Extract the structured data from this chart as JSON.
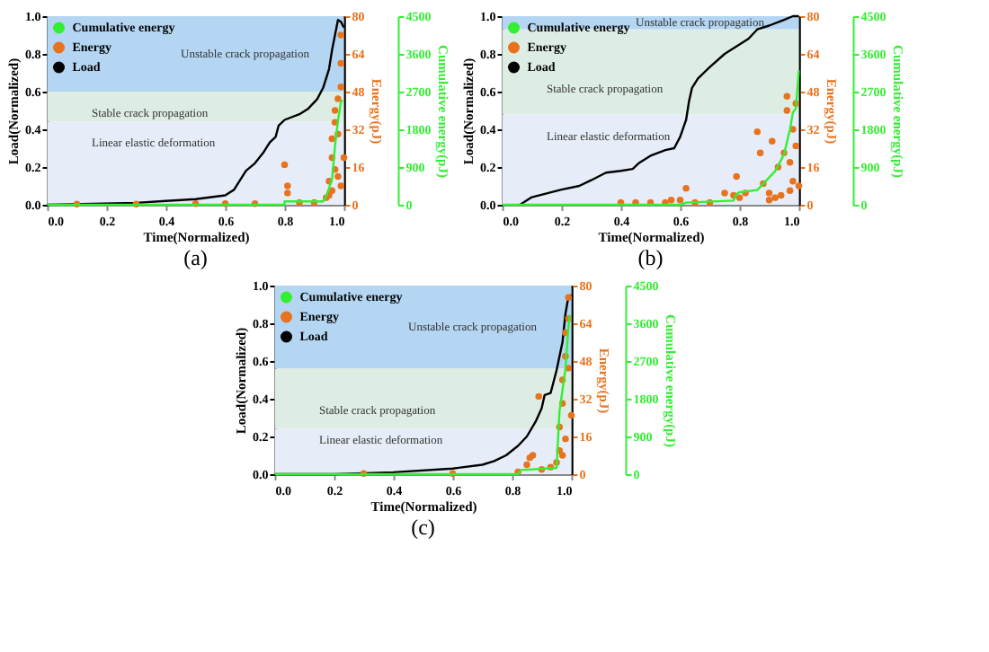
{
  "chart_data": [
    {
      "type": "line",
      "title": "(a)",
      "xlabel": "Time(Normalized)",
      "ylabel": "Load(Normalized)",
      "y2label": "Energy(pJ)",
      "y3label": "Cumulative energy(pJ)",
      "xlim": [
        0,
        1
      ],
      "xticks": [
        {
          "value": 0,
          "label": "0.0"
        },
        {
          "value": 0.2,
          "label": "0.2"
        },
        {
          "value": 0.4,
          "label": "0.4"
        },
        {
          "value": 0.6,
          "label": "0.6"
        },
        {
          "value": 0.8,
          "label": "0.8"
        },
        {
          "value": 1,
          "label": "1.0"
        }
      ],
      "ylim": [
        0,
        1
      ],
      "yticks": [
        {
          "value": 0,
          "label": "0.0"
        },
        {
          "value": 0.2,
          "label": "0.2"
        },
        {
          "value": 0.4,
          "label": "0.4"
        },
        {
          "value": 0.6,
          "label": "0.6"
        },
        {
          "value": 0.8,
          "label": "0.8"
        },
        {
          "value": 1,
          "label": "1.0"
        }
      ],
      "y2lim": [
        0,
        80
      ],
      "y2ticks": [
        0,
        16,
        32,
        48,
        64,
        80
      ],
      "y3lim": [
        0,
        4500
      ],
      "y3ticks": [
        0,
        900,
        1800,
        2700,
        3600,
        4500
      ],
      "legend": "top left",
      "grid": false,
      "bands": [
        {
          "axis": "y",
          "from": 0.6,
          "to": 1,
          "label": "Unstable crack propagation",
          "color": "#b4d6f2"
        },
        {
          "axis": "y",
          "from": 0.44,
          "to": 0.6,
          "label": "Stable crack propagation",
          "color": "#deede4"
        },
        {
          "axis": "y",
          "from": 0,
          "to": 0.44,
          "label": "Linear elastic deformation",
          "color": "#e6ecf8"
        }
      ],
      "series": [
        {
          "name": "Cumulative energy",
          "type": "line",
          "axis": "y3",
          "color": "#33ee33",
          "marker": "none",
          "x": [
            0,
            0.8,
            0.8,
            0.93,
            0.94,
            0.96,
            0.97,
            0.98,
            0.99,
            0.995
          ],
          "values": [
            0,
            0,
            80,
            80,
            200,
            600,
            1400,
            2000,
            2450,
            2500
          ]
        },
        {
          "name": "Energy",
          "type": "scatter",
          "axis": "y2",
          "color": "#e8731e",
          "marker": "circle",
          "x": [
            0.1,
            0.3,
            0.5,
            0.6,
            0.7,
            0.8,
            0.81,
            0.81,
            0.85,
            0.9,
            0.94,
            0.95,
            0.95,
            0.96,
            0.96,
            0.96,
            0.97,
            0.97,
            0.97,
            0.98,
            0.98,
            0.98,
            0.99,
            0.99,
            0.99,
            0.99,
            1.0
          ],
          "values": [
            0.3,
            0.3,
            0.5,
            0.5,
            0.5,
            17,
            8,
            5,
            1,
            1,
            3,
            10,
            4,
            20,
            28,
            6,
            35,
            40,
            15,
            45,
            30,
            12,
            72,
            60,
            50,
            8,
            20
          ]
        },
        {
          "name": "Load",
          "type": "line",
          "axis": "y",
          "color": "#000000",
          "marker": "none",
          "x": [
            0,
            0.3,
            0.4,
            0.5,
            0.6,
            0.63,
            0.65,
            0.67,
            0.7,
            0.73,
            0.75,
            0.77,
            0.78,
            0.8,
            0.85,
            0.88,
            0.91,
            0.93,
            0.95,
            0.96,
            0.97,
            0.98,
            0.99,
            1.0
          ],
          "values": [
            0,
            0.01,
            0.02,
            0.03,
            0.05,
            0.08,
            0.13,
            0.18,
            0.22,
            0.28,
            0.33,
            0.36,
            0.42,
            0.45,
            0.48,
            0.51,
            0.56,
            0.62,
            0.72,
            0.82,
            0.9,
            0.98,
            0.97,
            0.94
          ]
        }
      ]
    },
    {
      "type": "line",
      "title": "(b)",
      "xlabel": "Time(Normalized)",
      "ylabel": "Load(Normalized)",
      "y2label": "Energy(pJ)",
      "y3label": "Cumulative energy(pJ)",
      "xlim": [
        0,
        1
      ],
      "xticks": [
        {
          "value": 0,
          "label": "0.0"
        },
        {
          "value": 0.2,
          "label": "0.2"
        },
        {
          "value": 0.4,
          "label": "0.4"
        },
        {
          "value": 0.6,
          "label": "0.6"
        },
        {
          "value": 0.8,
          "label": "0.8"
        },
        {
          "value": 1,
          "label": "1.0"
        }
      ],
      "ylim": [
        0,
        1
      ],
      "yticks": [
        {
          "value": 0,
          "label": "0.0"
        },
        {
          "value": 0.2,
          "label": "0.2"
        },
        {
          "value": 0.4,
          "label": "0.4"
        },
        {
          "value": 0.6,
          "label": "0.6"
        },
        {
          "value": 0.8,
          "label": "0.8"
        },
        {
          "value": 1,
          "label": "1.0"
        }
      ],
      "y2lim": [
        0,
        80
      ],
      "y2ticks": [
        0,
        16,
        32,
        48,
        64,
        80
      ],
      "y3lim": [
        0,
        4500
      ],
      "y3ticks": [
        0,
        900,
        1800,
        2700,
        3600,
        4500
      ],
      "legend": "top left",
      "grid": false,
      "bands": [
        {
          "axis": "y",
          "from": 0.93,
          "to": 1,
          "label": "Unstable crack propagation",
          "color": "#b4d6f2"
        },
        {
          "axis": "y",
          "from": 0.48,
          "to": 0.93,
          "label": "Stable crack propagation",
          "color": "#deede4"
        },
        {
          "axis": "y",
          "from": 0,
          "to": 0.48,
          "label": "Linear elastic deformation",
          "color": "#e6ecf8"
        }
      ],
      "series": [
        {
          "name": "Cumulative energy",
          "type": "line",
          "axis": "y3",
          "color": "#33ee33",
          "marker": "none",
          "x": [
            0,
            0.6,
            0.62,
            0.78,
            0.79,
            0.8,
            0.86,
            0.88,
            0.92,
            0.95,
            0.97,
            0.98,
            0.99,
            1.0
          ],
          "values": [
            0,
            0,
            50,
            100,
            250,
            300,
            350,
            500,
            800,
            1200,
            1800,
            2200,
            2300,
            3200
          ]
        },
        {
          "name": "Energy",
          "type": "scatter",
          "axis": "y2",
          "color": "#e8731e",
          "marker": "circle",
          "x": [
            0.4,
            0.45,
            0.5,
            0.55,
            0.57,
            0.6,
            0.62,
            0.65,
            0.7,
            0.75,
            0.78,
            0.79,
            0.8,
            0.82,
            0.86,
            0.87,
            0.88,
            0.9,
            0.9,
            0.91,
            0.92,
            0.93,
            0.94,
            0.95,
            0.96,
            0.96,
            0.97,
            0.97,
            0.98,
            0.98,
            0.99,
            0.99,
            1.0
          ],
          "values": [
            1,
            1,
            1,
            1,
            2,
            2,
            7,
            1,
            1,
            5,
            4,
            12,
            3,
            5,
            31,
            22,
            9,
            5,
            2,
            27,
            3,
            16,
            4,
            22,
            46,
            40,
            18,
            6,
            32,
            10,
            43,
            25,
            8
          ]
        },
        {
          "name": "Load",
          "type": "line",
          "axis": "y",
          "color": "#000000",
          "marker": "none",
          "x": [
            0.06,
            0.08,
            0.1,
            0.15,
            0.2,
            0.26,
            0.3,
            0.35,
            0.4,
            0.44,
            0.46,
            0.5,
            0.55,
            0.58,
            0.6,
            0.62,
            0.63,
            0.64,
            0.66,
            0.7,
            0.75,
            0.8,
            0.83,
            0.86,
            0.9,
            0.95,
            0.98,
            1.0
          ],
          "values": [
            0,
            0.02,
            0.04,
            0.06,
            0.08,
            0.1,
            0.13,
            0.17,
            0.18,
            0.19,
            0.22,
            0.26,
            0.29,
            0.3,
            0.36,
            0.45,
            0.55,
            0.62,
            0.67,
            0.73,
            0.8,
            0.85,
            0.88,
            0.93,
            0.95,
            0.98,
            1.0,
            1.0
          ]
        }
      ]
    },
    {
      "type": "line",
      "title": "(c)",
      "xlabel": "Time(Normalized)",
      "ylabel": "Load(Normalized)",
      "y2label": "Energy(pJ)",
      "y3label": "Cumulative energy(pJ)",
      "xlim": [
        0,
        1
      ],
      "xticks": [
        {
          "value": 0,
          "label": "0.0"
        },
        {
          "value": 0.2,
          "label": "0.2"
        },
        {
          "value": 0.4,
          "label": "0.4"
        },
        {
          "value": 0.6,
          "label": "0.6"
        },
        {
          "value": 0.8,
          "label": "0.8"
        },
        {
          "value": 1,
          "label": "1.0"
        }
      ],
      "ylim": [
        0,
        1
      ],
      "yticks": [
        {
          "value": 0,
          "label": "0.0"
        },
        {
          "value": 0.2,
          "label": "0.2"
        },
        {
          "value": 0.4,
          "label": "0.4"
        },
        {
          "value": 0.6,
          "label": "0.6"
        },
        {
          "value": 0.8,
          "label": "0.8"
        },
        {
          "value": 1,
          "label": "1.0"
        }
      ],
      "y2lim": [
        0,
        80
      ],
      "y2ticks": [
        0,
        16,
        32,
        48,
        64,
        80
      ],
      "y3lim": [
        0,
        4500
      ],
      "y3ticks": [
        0,
        900,
        1800,
        2700,
        3600,
        4500
      ],
      "legend": "top left",
      "grid": false,
      "bands": [
        {
          "axis": "y",
          "from": 0.56,
          "to": 1,
          "label": "Unstable crack propagation",
          "color": "#b4d6f2"
        },
        {
          "axis": "y",
          "from": 0.24,
          "to": 0.56,
          "label": "Stable crack propagation",
          "color": "#deede4"
        },
        {
          "axis": "y",
          "from": 0,
          "to": 0.24,
          "label": "Linear elastic deformation",
          "color": "#e6ecf8"
        }
      ],
      "series": [
        {
          "name": "Cumulative energy",
          "type": "line",
          "axis": "y3",
          "color": "#33ee33",
          "marker": "none",
          "x": [
            0,
            0.82,
            0.83,
            0.95,
            0.96,
            0.97,
            0.98,
            0.99,
            0.995
          ],
          "values": [
            0,
            0,
            100,
            150,
            1500,
            2000,
            2500,
            3500,
            3800
          ]
        },
        {
          "name": "Energy",
          "type": "scatter",
          "axis": "y2",
          "color": "#e8731e",
          "marker": "circle",
          "x": [
            0.3,
            0.6,
            0.82,
            0.85,
            0.86,
            0.87,
            0.89,
            0.9,
            0.93,
            0.95,
            0.96,
            0.96,
            0.97,
            0.97,
            0.97,
            0.98,
            0.98,
            0.98,
            0.99,
            0.99,
            0.99,
            1.0
          ],
          "values": [
            0.3,
            0.3,
            1,
            4,
            7,
            8,
            33,
            2,
            3,
            5,
            10,
            20,
            30,
            40,
            8,
            50,
            60,
            15,
            66,
            75,
            45,
            25
          ]
        },
        {
          "name": "Load",
          "type": "line",
          "axis": "y",
          "color": "#000000",
          "marker": "none",
          "x": [
            0,
            0.2,
            0.4,
            0.6,
            0.7,
            0.74,
            0.78,
            0.82,
            0.85,
            0.88,
            0.9,
            0.91,
            0.93,
            0.95,
            0.97,
            0.98,
            0.99,
            1.0
          ],
          "values": [
            0,
            0.0,
            0.01,
            0.03,
            0.05,
            0.07,
            0.1,
            0.15,
            0.2,
            0.28,
            0.35,
            0.42,
            0.43,
            0.55,
            0.7,
            0.85,
            0.94,
            0.95
          ]
        }
      ]
    }
  ]
}
